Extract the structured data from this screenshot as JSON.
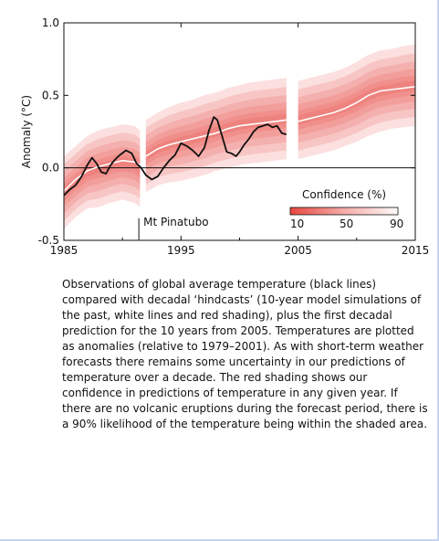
{
  "caption": "Observations of global average temperature (black lines) compared with decadal ‘hindcasts’ (10-year model simulations of the past, white lines and red shading), plus the first decadal prediction for the 10 years from 2005. Temperatures are plotted as anomalies (relative to 1979–2001). As with short-term weather forecasts there remains some uncertainty in our predictions of temperature over a decade. The red shading shows our confidence in predictions of temperature in any given year. If there are no volcanic eruptions during the forecast period, there is a 90% likelihood of the temperature being within the shaded area.",
  "colors": {
    "shade": "#e8473f",
    "observed": "#111111",
    "hindcast": "#ffffff"
  },
  "chart_data": {
    "type": "line",
    "title": "",
    "xlabel": "",
    "ylabel": "Anomaly (°C)",
    "xlim": [
      1985,
      2015
    ],
    "ylim": [
      -0.5,
      1.0
    ],
    "x_ticks": [
      "1985",
      "1995",
      "2005",
      "2015"
    ],
    "y_ticks": [
      "-0.5",
      "0.0",
      "0.5",
      "1.0"
    ],
    "annotation": "Mt Pinatubo",
    "annotation_x": 1991.4,
    "legend": {
      "title": "Confidence (%)",
      "labels": [
        "10",
        "50",
        "90"
      ],
      "placement": "lower-right"
    },
    "series": [
      {
        "kind": "observed",
        "points": [
          [
            1985.0,
            -0.19
          ],
          [
            1985.5,
            -0.15
          ],
          [
            1986.0,
            -0.12
          ],
          [
            1986.5,
            -0.06
          ],
          [
            1987.0,
            0.02
          ],
          [
            1987.4,
            0.07
          ],
          [
            1987.8,
            0.03
          ],
          [
            1988.2,
            -0.03
          ],
          [
            1988.6,
            -0.04
          ],
          [
            1989.0,
            0.02
          ],
          [
            1989.4,
            0.06
          ],
          [
            1989.8,
            0.09
          ],
          [
            1990.3,
            0.12
          ],
          [
            1990.8,
            0.1
          ],
          [
            1991.2,
            0.03
          ],
          [
            1991.6,
            0.0
          ],
          [
            1992.0,
            -0.05
          ],
          [
            1992.5,
            -0.08
          ],
          [
            1993.0,
            -0.06
          ],
          [
            1993.5,
            0.0
          ],
          [
            1994.0,
            0.05
          ],
          [
            1994.5,
            0.09
          ],
          [
            1995.0,
            0.17
          ],
          [
            1995.5,
            0.15
          ],
          [
            1996.0,
            0.12
          ],
          [
            1996.5,
            0.08
          ],
          [
            1997.0,
            0.14
          ],
          [
            1997.4,
            0.26
          ],
          [
            1997.8,
            0.35
          ],
          [
            1998.1,
            0.33
          ],
          [
            1998.5,
            0.22
          ],
          [
            1998.9,
            0.11
          ],
          [
            1999.3,
            0.1
          ],
          [
            1999.7,
            0.08
          ],
          [
            2000.0,
            0.11
          ],
          [
            2000.4,
            0.16
          ],
          [
            2000.8,
            0.2
          ],
          [
            2001.2,
            0.25
          ],
          [
            2001.6,
            0.28
          ],
          [
            2002.0,
            0.29
          ],
          [
            2002.4,
            0.3
          ],
          [
            2002.8,
            0.28
          ],
          [
            2003.2,
            0.29
          ],
          [
            2003.6,
            0.24
          ],
          [
            2004.0,
            0.23
          ]
        ]
      },
      {
        "kind": "hindcast",
        "segments": [
          [
            [
              1985.0,
              -0.16
            ],
            [
              1986.0,
              -0.08
            ],
            [
              1987.0,
              -0.02
            ],
            [
              1988.0,
              0.01
            ],
            [
              1989.0,
              0.03
            ],
            [
              1990.0,
              0.05
            ],
            [
              1991.0,
              0.04
            ],
            [
              1991.5,
              0.02
            ]
          ],
          [
            [
              1992.0,
              0.08
            ],
            [
              1993.0,
              0.13
            ],
            [
              1994.0,
              0.16
            ],
            [
              1995.0,
              0.18
            ],
            [
              1996.0,
              0.2
            ],
            [
              1997.0,
              0.22
            ],
            [
              1998.0,
              0.24
            ],
            [
              1999.0,
              0.27
            ],
            [
              2000.0,
              0.29
            ],
            [
              2001.0,
              0.3
            ],
            [
              2002.0,
              0.31
            ],
            [
              2003.0,
              0.32
            ],
            [
              2004.0,
              0.33
            ]
          ],
          [
            [
              2005.0,
              0.32
            ],
            [
              2006.0,
              0.34
            ],
            [
              2007.0,
              0.36
            ],
            [
              2008.0,
              0.38
            ],
            [
              2009.0,
              0.41
            ],
            [
              2010.0,
              0.45
            ],
            [
              2011.0,
              0.5
            ],
            [
              2012.0,
              0.53
            ],
            [
              2013.0,
              0.54
            ],
            [
              2014.0,
              0.55
            ],
            [
              2015.0,
              0.56
            ]
          ]
        ]
      },
      {
        "kind": "confidence-band",
        "segments": [
          [
            [
              1985.0,
              -0.42,
              0.08
            ],
            [
              1986.0,
              -0.34,
              0.15
            ],
            [
              1987.0,
              -0.28,
              0.22
            ],
            [
              1988.0,
              -0.27,
              0.26
            ],
            [
              1989.0,
              -0.24,
              0.28
            ],
            [
              1990.0,
              -0.22,
              0.3
            ],
            [
              1991.0,
              -0.24,
              0.29
            ],
            [
              1991.5,
              -0.27,
              0.26
            ]
          ],
          [
            [
              1992.0,
              -0.17,
              0.33
            ],
            [
              1993.0,
              -0.12,
              0.38
            ],
            [
              1994.0,
              -0.1,
              0.42
            ],
            [
              1995.0,
              -0.09,
              0.45
            ],
            [
              1996.0,
              -0.07,
              0.47
            ],
            [
              1997.0,
              -0.05,
              0.5
            ],
            [
              1998.0,
              -0.02,
              0.52
            ],
            [
              1999.0,
              0.0,
              0.55
            ],
            [
              2000.0,
              0.02,
              0.57
            ],
            [
              2001.0,
              0.03,
              0.59
            ],
            [
              2002.0,
              0.04,
              0.6
            ],
            [
              2003.0,
              0.05,
              0.61
            ],
            [
              2004.0,
              0.06,
              0.62
            ]
          ],
          [
            [
              2005.0,
              0.06,
              0.6
            ],
            [
              2006.0,
              0.08,
              0.62
            ],
            [
              2007.0,
              0.1,
              0.64
            ],
            [
              2008.0,
              0.12,
              0.66
            ],
            [
              2009.0,
              0.15,
              0.69
            ],
            [
              2010.0,
              0.18,
              0.73
            ],
            [
              2011.0,
              0.22,
              0.78
            ],
            [
              2012.0,
              0.25,
              0.81
            ],
            [
              2013.0,
              0.27,
              0.82
            ],
            [
              2014.0,
              0.28,
              0.84
            ],
            [
              2015.0,
              0.29,
              0.85
            ]
          ]
        ]
      }
    ]
  }
}
